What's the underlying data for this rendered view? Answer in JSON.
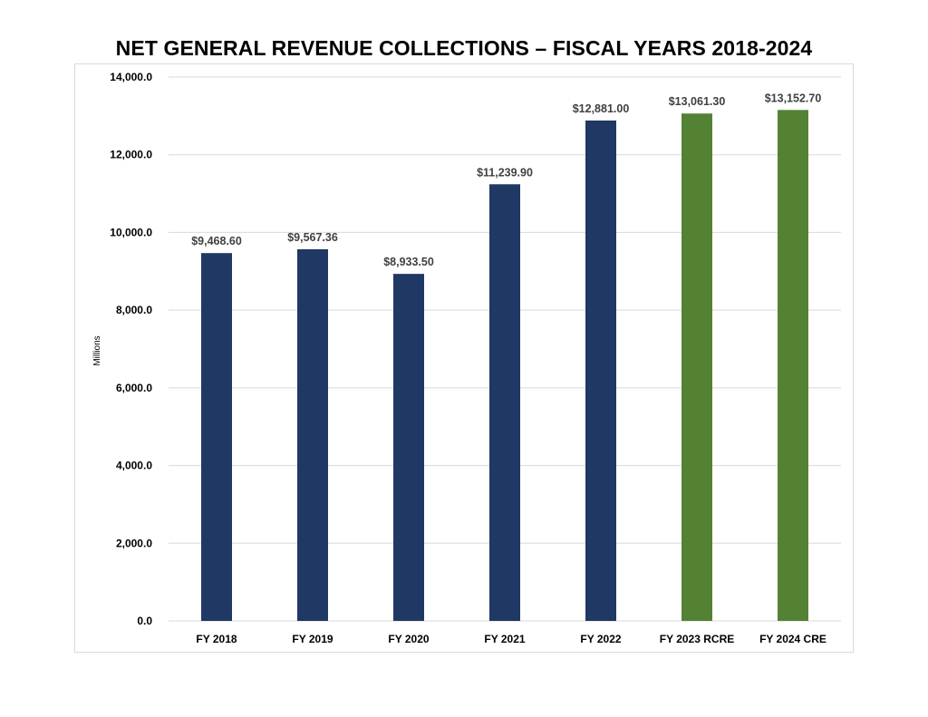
{
  "chart_data": {
    "type": "bar",
    "title": "NET GENERAL REVENUE COLLECTIONS – FISCAL YEARS 2018-2024",
    "xlabel": "",
    "ylabel": "Millions",
    "ylim": [
      0,
      14000
    ],
    "yticks": [
      0,
      2000,
      4000,
      6000,
      8000,
      10000,
      12000,
      14000
    ],
    "ytick_labels": [
      "0.0",
      "2,000.0",
      "4,000.0",
      "6,000.0",
      "8,000.0",
      "10,000.0",
      "12,000.0",
      "14,000.0"
    ],
    "grid": true,
    "legend": "none",
    "categories": [
      "FY 2018",
      "FY 2019",
      "FY 2020",
      "FY 2021",
      "FY 2022",
      "FY 2023 RCRE",
      "FY 2024 CRE"
    ],
    "values": [
      9468.6,
      9567.36,
      8933.5,
      11239.9,
      12881.0,
      13061.3,
      13152.7
    ],
    "data_labels": [
      "$9,468.60",
      "$9,567.36",
      "$8,933.50",
      "$11,239.90",
      "$12,881.00",
      "$13,061.30",
      "$13,152.70"
    ],
    "bar_colors": [
      "#203864",
      "#203864",
      "#203864",
      "#203864",
      "#203864",
      "#548235",
      "#548235"
    ]
  }
}
